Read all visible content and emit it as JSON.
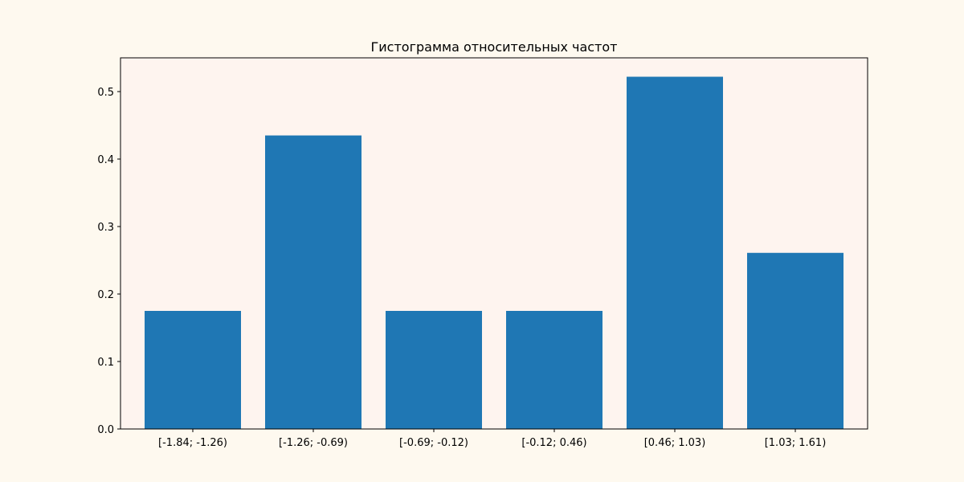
{
  "colors": {
    "figure_background": "#fef9ef",
    "axes_background": "#fef4ef",
    "bar_fill": "#1f77b4",
    "axis_line": "#000000"
  },
  "chart_data": {
    "type": "bar",
    "title": "Гистограмма относительных частот",
    "xlabel": "",
    "ylabel": "",
    "categories": [
      "[-1.84; -1.26)",
      "[-1.26; -0.69)",
      "[-0.69; -0.12)",
      "[-0.12; 0.46)",
      "[0.46; 1.03)",
      "[1.03; 1.61)"
    ],
    "values": [
      0.175,
      0.435,
      0.175,
      0.175,
      0.522,
      0.261
    ],
    "ylim": [
      0,
      0.55
    ],
    "yticks": [
      "0.0",
      "0.1",
      "0.2",
      "0.3",
      "0.4",
      "0.5"
    ],
    "ytick_values": [
      0.0,
      0.1,
      0.2,
      0.3,
      0.4,
      0.5
    ],
    "grid": false,
    "legend": "none"
  }
}
